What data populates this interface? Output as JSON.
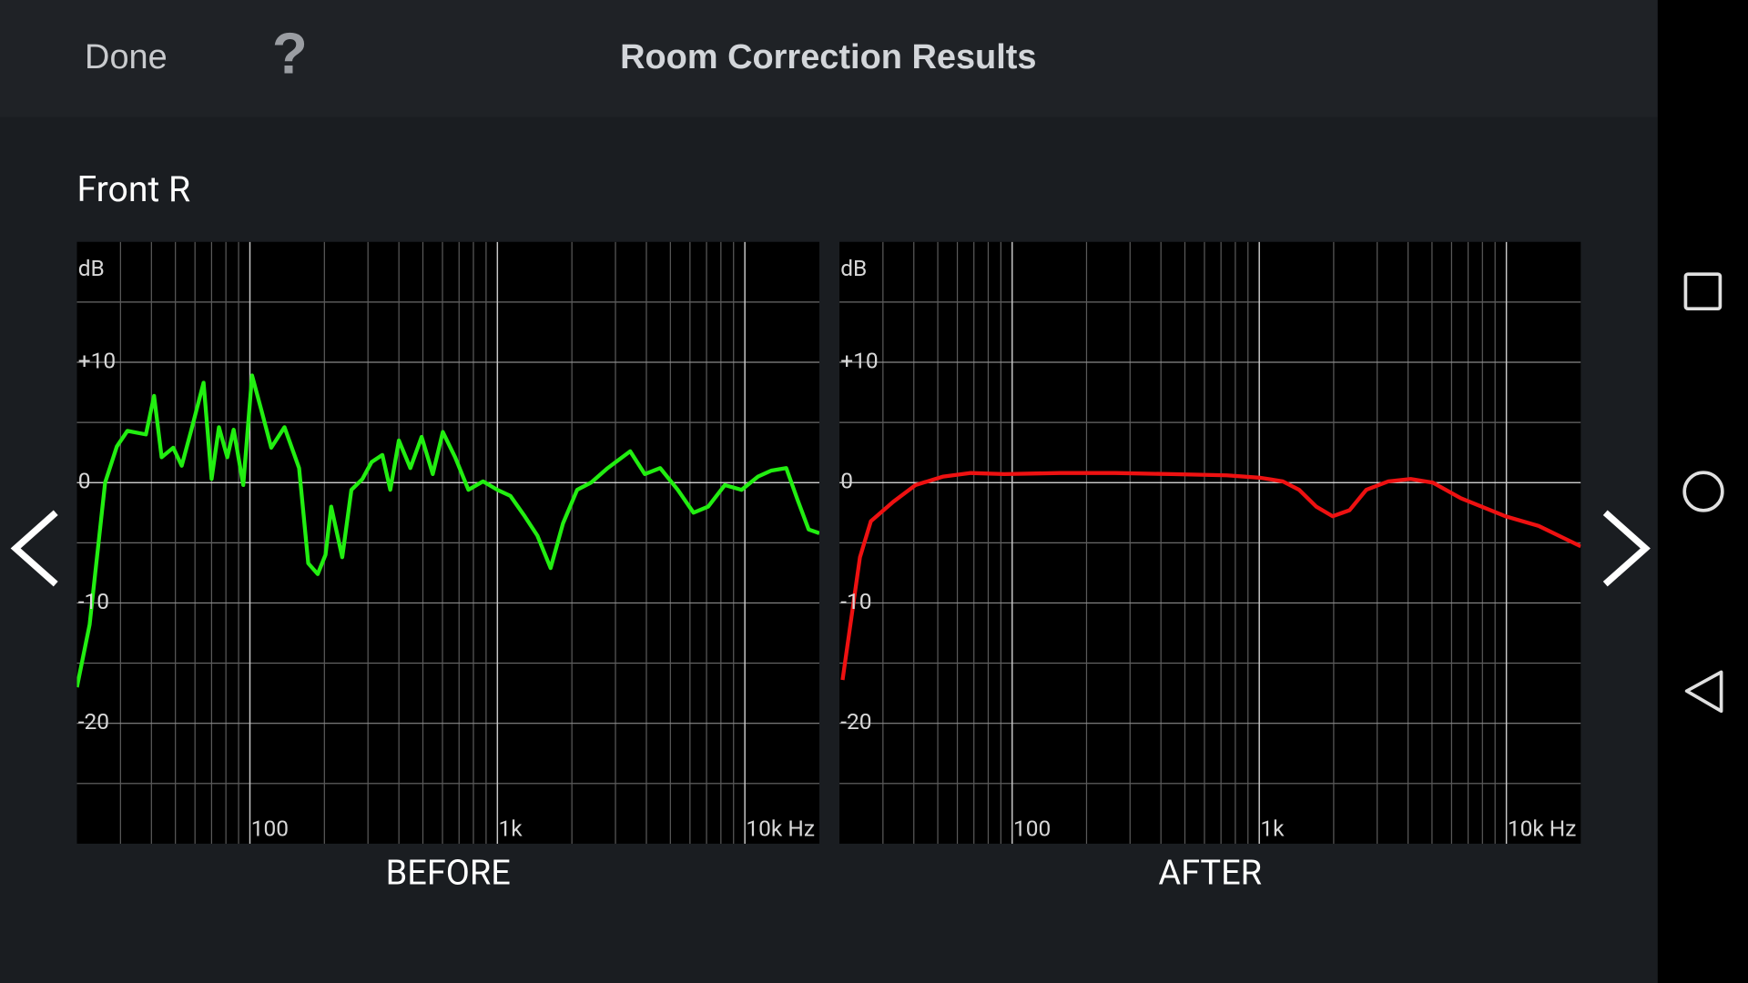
{
  "header": {
    "done": "Done",
    "help": "?",
    "title": "Room Correction Results"
  },
  "channel": "Front R",
  "chart_data": [
    {
      "type": "line",
      "title": "BEFORE",
      "y_label": "dB",
      "x_scale": "log",
      "color": "#22ee11",
      "grid": true,
      "xlim": [
        20,
        20000
      ],
      "xticks": [
        100,
        {
          "value": 1000,
          "label": "1k"
        },
        {
          "value": 10000,
          "label": "10k Hz"
        }
      ],
      "minor_xticks": [
        30,
        40,
        50,
        60,
        70,
        80,
        90,
        200,
        300,
        400,
        500,
        600,
        700,
        800,
        900,
        2000,
        3000,
        4000,
        5000,
        6000,
        7000,
        8000,
        9000
      ],
      "ylim": [
        -30,
        20
      ],
      "yticks": [
        {
          "value": 10,
          "label": "+10"
        },
        0,
        -10,
        -20
      ],
      "minor_yticks": [
        15,
        5,
        -5,
        -15,
        -25
      ],
      "x": [
        20,
        22.5,
        26,
        29,
        32,
        38,
        41,
        44,
        49,
        53,
        58,
        65,
        70,
        75,
        81,
        86,
        94,
        102,
        112,
        122,
        138,
        158,
        172,
        188,
        202,
        213,
        236,
        257,
        285,
        310,
        343,
        369,
        400,
        445,
        494,
        548,
        602,
        675,
        764,
        875,
        1000,
        1128,
        1280,
        1450,
        1640,
        1840,
        2100,
        2390,
        2790,
        3440,
        3940,
        4550,
        5360,
        6200,
        7100,
        8300,
        9700,
        11300,
        12800,
        14700,
        16300,
        18100,
        20000
      ],
      "values": [
        -17,
        -11.8,
        0,
        3,
        4.3,
        4,
        7.2,
        2.1,
        2.9,
        1.4,
        4.4,
        8.3,
        0.3,
        4.6,
        2.1,
        4.4,
        -0.2,
        8.9,
        5.8,
        2.9,
        4.6,
        1.2,
        -6.7,
        -7.6,
        -6,
        -2,
        -6.2,
        -0.6,
        0.3,
        1.7,
        2.3,
        -0.6,
        3.5,
        1.2,
        3.8,
        0.7,
        4.2,
        2.1,
        -0.6,
        0.1,
        -0.6,
        -1.1,
        -2.7,
        -4.4,
        -7.1,
        -3.4,
        -0.6,
        0,
        1.2,
        2.6,
        0.7,
        1.2,
        -0.6,
        -2.5,
        -2,
        -0.2,
        -0.6,
        0.5,
        1,
        1.2,
        -1.4,
        -3.9,
        -4.2
      ]
    },
    {
      "type": "line",
      "title": "AFTER",
      "y_label": "dB",
      "x_scale": "log",
      "color": "#ee1111",
      "grid": true,
      "xlim": [
        20,
        20000
      ],
      "xticks": [
        100,
        {
          "value": 1000,
          "label": "1k"
        },
        {
          "value": 10000,
          "label": "10k Hz"
        }
      ],
      "minor_xticks": [
        30,
        40,
        50,
        60,
        70,
        80,
        90,
        200,
        300,
        400,
        500,
        600,
        700,
        800,
        900,
        2000,
        3000,
        4000,
        5000,
        6000,
        7000,
        8000,
        9000
      ],
      "ylim": [
        -30,
        20
      ],
      "yticks": [
        {
          "value": 10,
          "label": "+10"
        },
        0,
        -10,
        -20
      ],
      "minor_yticks": [
        15,
        5,
        -5,
        -15,
        -25
      ],
      "x": [
        20.6,
        24.2,
        26.8,
        33,
        40.6,
        52.6,
        68,
        93,
        156,
        262,
        441,
        740,
        1010,
        1245,
        1450,
        1700,
        1980,
        2320,
        2710,
        3330,
        4100,
        5040,
        6540,
        9900,
        13500,
        20000
      ],
      "values": [
        -16.4,
        -6.2,
        -3.2,
        -1.6,
        -0.2,
        0.5,
        0.8,
        0.7,
        0.8,
        0.8,
        0.7,
        0.6,
        0.4,
        0.1,
        -0.6,
        -2,
        -2.8,
        -2.3,
        -0.6,
        0.1,
        0.3,
        0,
        -1.3,
        -2.8,
        -3.6,
        -5.3
      ]
    }
  ]
}
